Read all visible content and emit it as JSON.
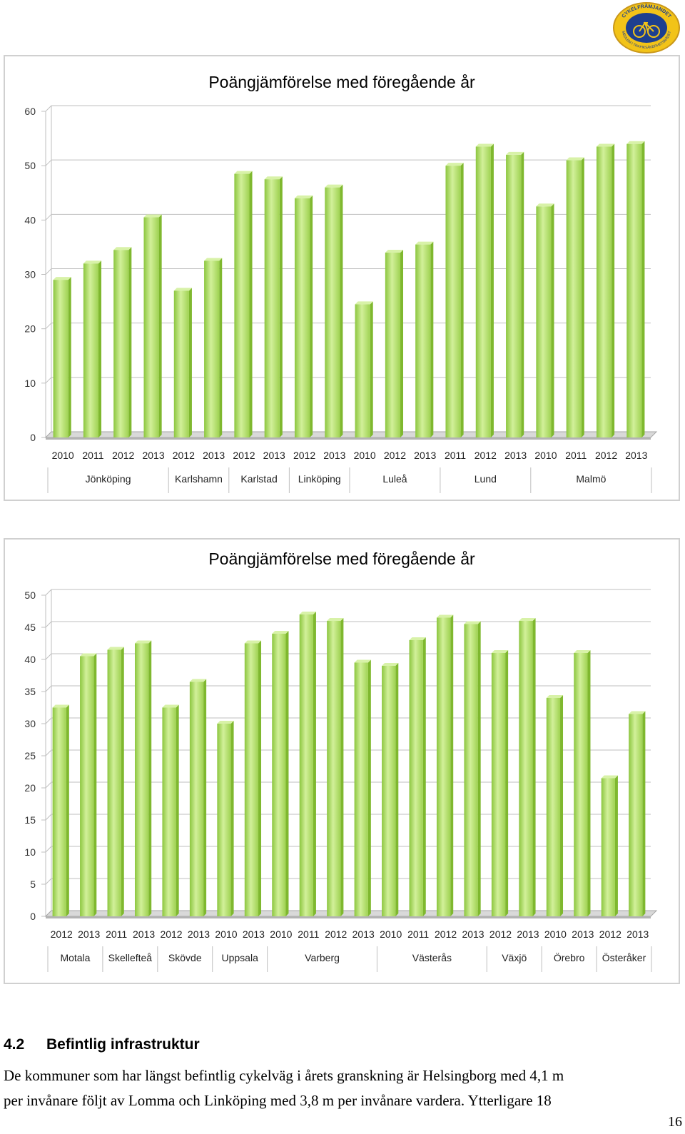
{
  "logo": {
    "text_top": "CYKELFRÄMJANDET",
    "text_bottom": "MEDLEM I TRAFIKSÄKERHETSRÅDET"
  },
  "chart_data": [
    {
      "type": "bar",
      "title": "Poängjämförelse med föregående år",
      "ylim": [
        0,
        60
      ],
      "yticks": [
        0,
        10,
        20,
        30,
        40,
        50,
        60
      ],
      "grid": true,
      "legend": "none",
      "bar_color": "#a6d85a",
      "groups": [
        {
          "name": "Jönköping",
          "years": [
            "2010",
            "2011",
            "2012",
            "2013"
          ],
          "values": [
            29,
            32,
            34.5,
            40.5
          ]
        },
        {
          "name": "Karlshamn",
          "years": [
            "2012",
            "2013"
          ],
          "values": [
            27,
            32.5
          ]
        },
        {
          "name": "Karlstad",
          "years": [
            "2012",
            "2013"
          ],
          "values": [
            48.5,
            47.5
          ]
        },
        {
          "name": "Linköping",
          "years": [
            "2012",
            "2013"
          ],
          "values": [
            44,
            46
          ]
        },
        {
          "name": "Luleå",
          "years": [
            "2010",
            "2012",
            "2013"
          ],
          "values": [
            24.5,
            34,
            35.5
          ]
        },
        {
          "name": "Lund",
          "years": [
            "2011",
            "2012",
            "2013"
          ],
          "values": [
            50,
            53.5,
            52
          ]
        },
        {
          "name": "Malmö",
          "years": [
            "2010",
            "2011",
            "2012",
            "2013"
          ],
          "values": [
            42.5,
            51,
            53.5,
            54
          ]
        }
      ]
    },
    {
      "type": "bar",
      "title": "Poängjämförelse med föregående år",
      "ylim": [
        0,
        50
      ],
      "yticks": [
        0,
        5,
        10,
        15,
        20,
        25,
        30,
        35,
        40,
        45,
        50
      ],
      "grid": true,
      "legend": "none",
      "bar_color": "#a6d85a",
      "groups": [
        {
          "name": "Motala",
          "years": [
            "2012",
            "2013"
          ],
          "values": [
            32.5,
            40.5
          ]
        },
        {
          "name": "Skellefteå",
          "years": [
            "2011",
            "2013"
          ],
          "values": [
            41.5,
            42.5
          ]
        },
        {
          "name": "Skövde",
          "years": [
            "2012",
            "2013"
          ],
          "values": [
            32.5,
            36.5
          ]
        },
        {
          "name": "Uppsala",
          "years": [
            "2010",
            "2013"
          ],
          "values": [
            30,
            42.5
          ]
        },
        {
          "name": "Varberg",
          "years": [
            "2010",
            "2011",
            "2012",
            "2013"
          ],
          "values": [
            44,
            47,
            46,
            39.5
          ]
        },
        {
          "name": "Västerås",
          "years": [
            "2010",
            "2011",
            "2012",
            "2013"
          ],
          "values": [
            39,
            43,
            46.5,
            45.5
          ]
        },
        {
          "name": "Växjö",
          "years": [
            "2012",
            "2013"
          ],
          "values": [
            41,
            46
          ]
        },
        {
          "name": "Örebro",
          "years": [
            "2010",
            "2013"
          ],
          "values": [
            34,
            41
          ]
        },
        {
          "name": "Österåker",
          "years": [
            "2012",
            "2013"
          ],
          "values": [
            21.5,
            31.5
          ]
        }
      ]
    }
  ],
  "section": {
    "number": "4.2",
    "heading": "Befintlig infrastruktur",
    "lines": [
      "De kommuner som har längst befintlig cykelväg i årets granskning är Helsingborg med 4,1 m",
      "per invånare följt av Lomma och Linköping med 3,8 m per invånare vardera. Ytterligare 18"
    ]
  },
  "page_number": "16"
}
